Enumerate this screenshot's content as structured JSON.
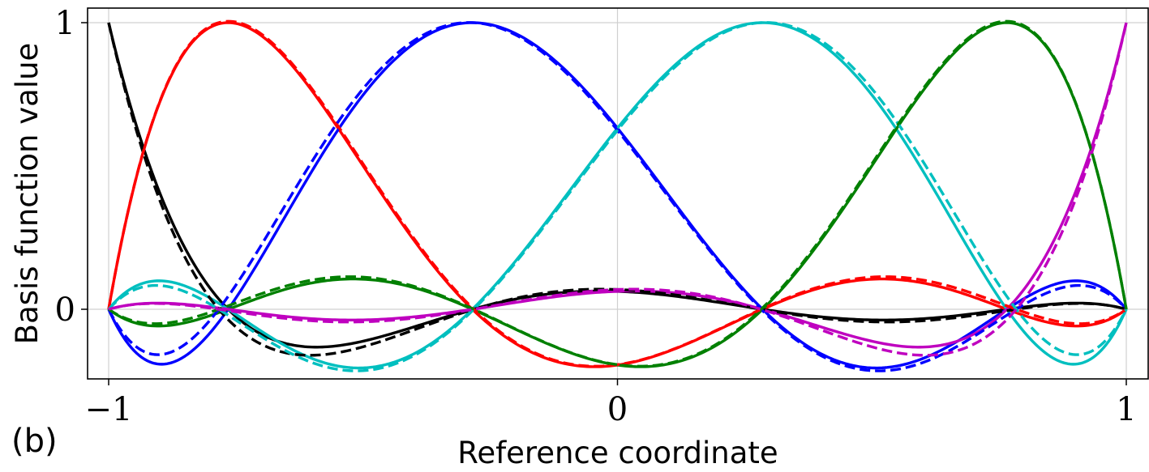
{
  "panel_label": "(b)",
  "chart_data": {
    "type": "line",
    "title": "",
    "xlabel": "Reference coordinate",
    "ylabel": "Basis function value",
    "xlim": [
      -1,
      1
    ],
    "ylim": [
      -0.23,
      1.05
    ],
    "grid": true,
    "legend": "none",
    "xticks": [
      {
        "value": -1,
        "label": "−1"
      },
      {
        "value": 0,
        "label": "0"
      },
      {
        "value": 1,
        "label": "1"
      }
    ],
    "yticks": [
      {
        "value": 0,
        "label": "0"
      },
      {
        "value": 1,
        "label": "1"
      }
    ],
    "groups": [
      {
        "style": "solid",
        "nodes": [
          -1,
          -0.7651,
          -0.2852,
          0.2852,
          0.7651,
          1
        ],
        "colors": [
          "#000000",
          "#ff0000",
          "#0000ff",
          "#00bfbf",
          "#008000",
          "#bf00bf"
        ]
      },
      {
        "style": "dashed",
        "nodes": [
          -1,
          -0.7837,
          -0.2823,
          0.2823,
          0.7837,
          1
        ],
        "colors": [
          "#000000",
          "#ff0000",
          "#0000ff",
          "#00bfbf",
          "#008000",
          "#bf00bf"
        ]
      }
    ]
  }
}
